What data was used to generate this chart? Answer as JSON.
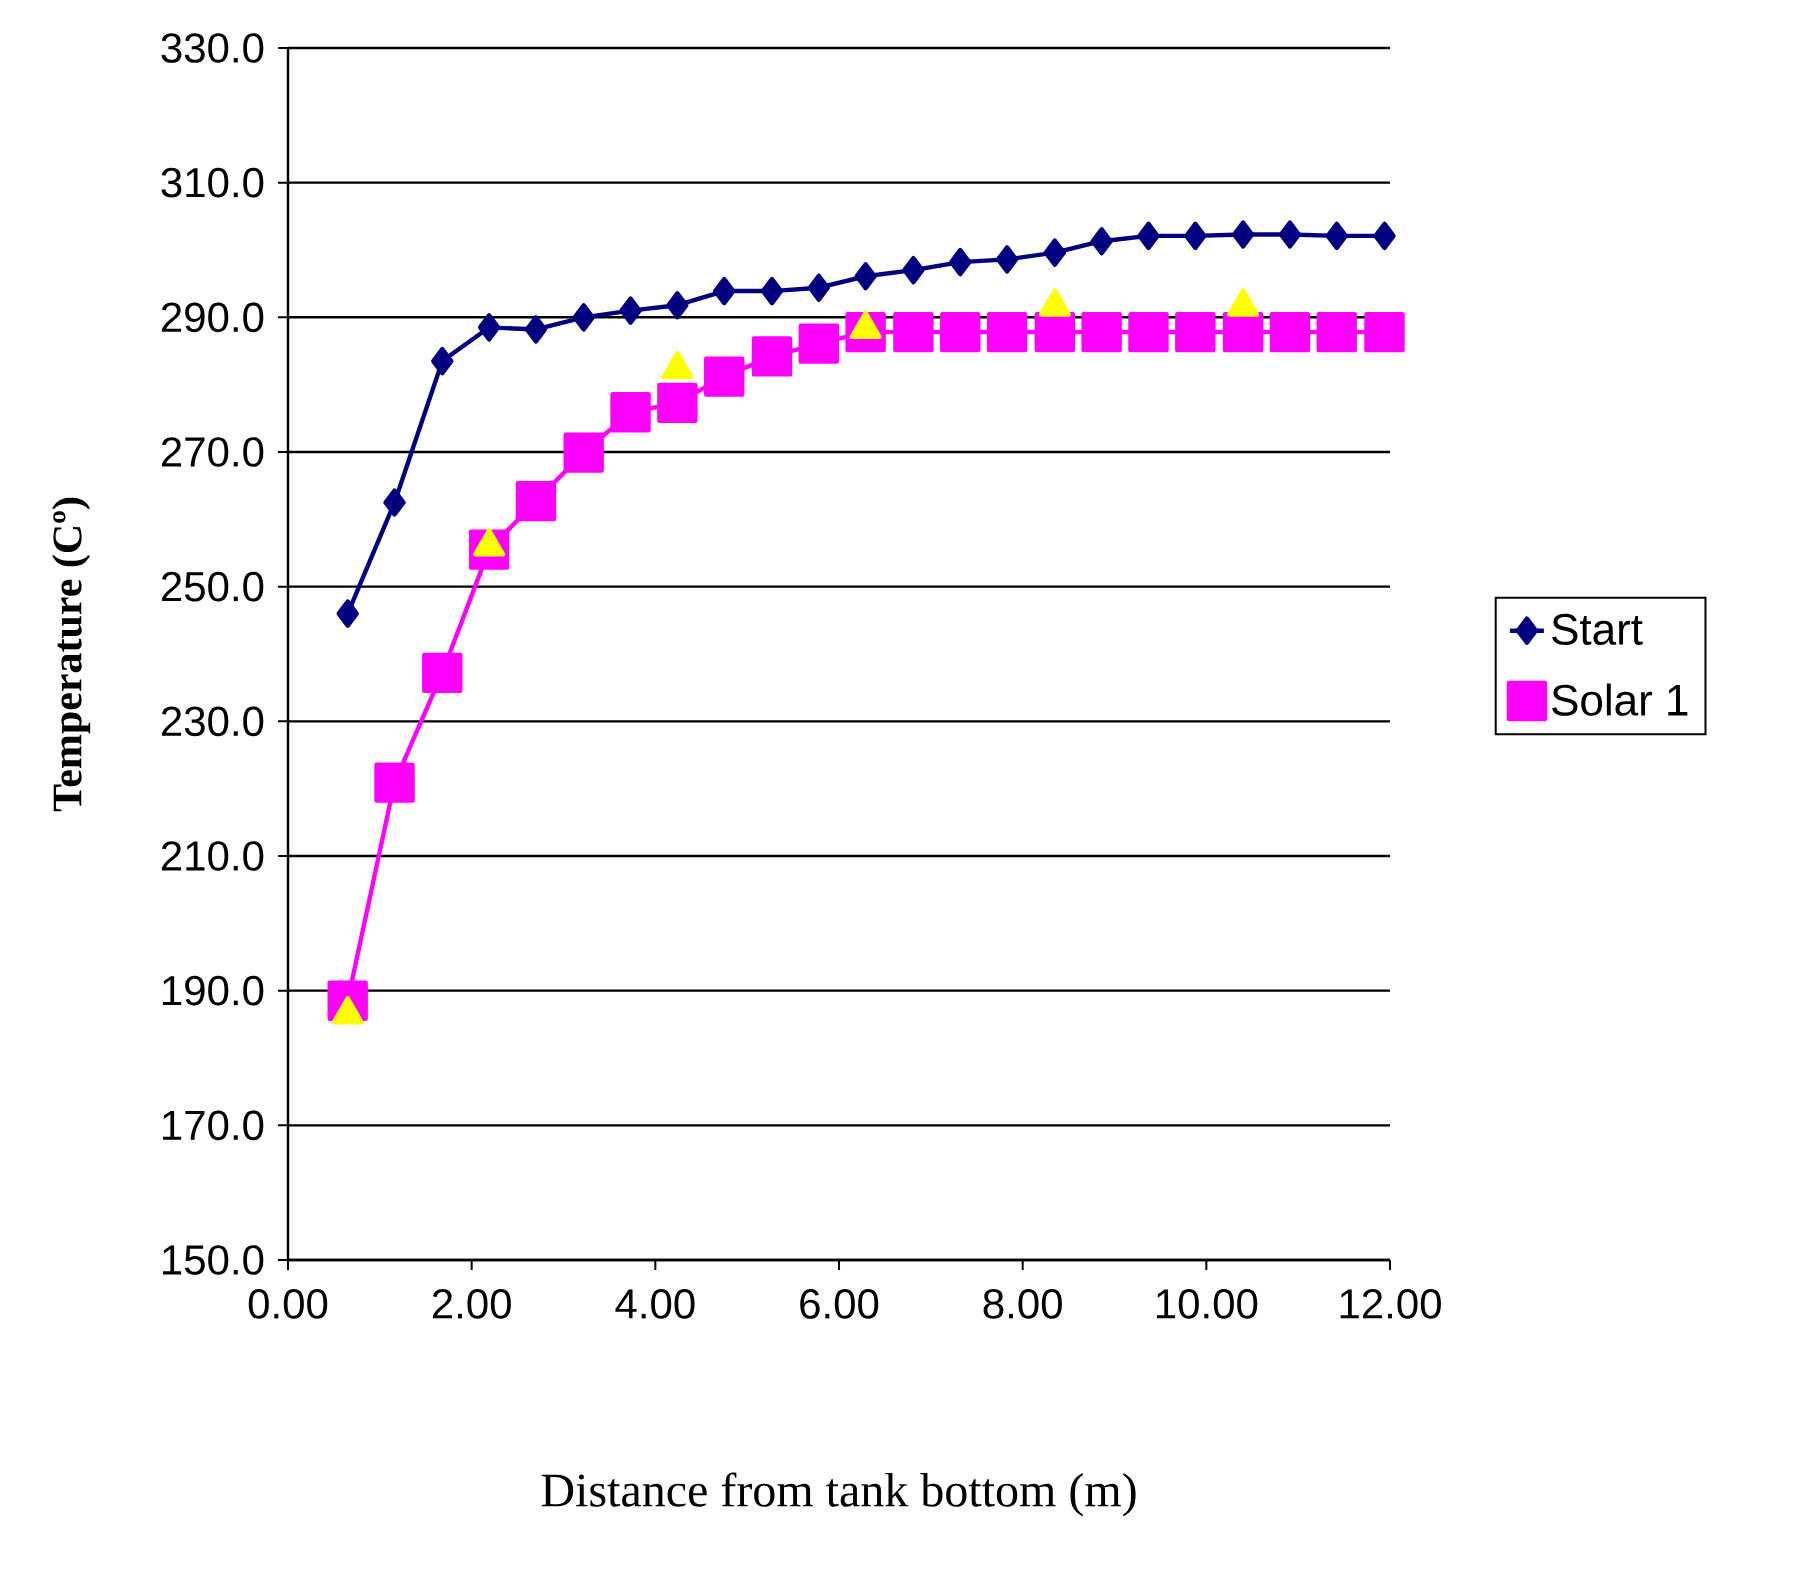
{
  "chart_data": {
    "type": "line",
    "xlabel": "Distance from tank bottom (m)",
    "ylabel": "Temperature (Cº)",
    "x": [
      0.65,
      1.16,
      1.68,
      2.19,
      2.7,
      3.22,
      3.73,
      4.24,
      4.75,
      5.27,
      5.78,
      6.29,
      6.81,
      7.32,
      7.83,
      8.35,
      8.86,
      9.37,
      9.88,
      10.4,
      10.91,
      11.42,
      11.94
    ],
    "series": [
      {
        "name": "Start",
        "color": "#000080",
        "marker": "diamond",
        "values": [
          246,
          262.5,
          283.5,
          288.5,
          288.2,
          290,
          291,
          291.8,
          293.9,
          293.9,
          294.4,
          296.1,
          297,
          298.2,
          298.6,
          299.6,
          301.3,
          302.1,
          302.1,
          302.3,
          302.3,
          302.1,
          302.1
        ]
      },
      {
        "name": "Solar 1",
        "color": "#ff00ff",
        "marker": "square",
        "values": [
          188.5,
          220.9,
          237.2,
          255.5,
          262.7,
          269.9,
          275.9,
          277.3,
          281.2,
          284.2,
          286.1,
          287.8,
          287.8,
          287.8,
          287.8,
          287.8,
          287.8,
          287.8,
          287.8,
          287.8,
          287.8,
          287.8,
          287.8
        ]
      },
      {
        "color": "#ffff00",
        "type": "scatter",
        "marker": "triangle",
        "x": [
          0.65,
          2.19,
          4.24,
          6.29,
          8.35,
          10.4
        ],
        "values": [
          186.5,
          256,
          282.3,
          288.3,
          291.6,
          291.6
        ]
      }
    ],
    "xlim": [
      0,
      12
    ],
    "ylim": [
      150,
      330
    ],
    "xticks": [
      {
        "value": 0,
        "label": "0.00"
      },
      {
        "value": 2,
        "label": "2.00"
      },
      {
        "value": 4,
        "label": "4.00"
      },
      {
        "value": 6,
        "label": "6.00"
      },
      {
        "value": 8,
        "label": "8.00"
      },
      {
        "value": 10,
        "label": "10.00"
      },
      {
        "value": 12,
        "label": "12.00"
      }
    ],
    "yticks": [
      {
        "value": 150,
        "label": "150.0"
      },
      {
        "value": 170,
        "label": "170.0"
      },
      {
        "value": 190,
        "label": "190.0"
      },
      {
        "value": 210,
        "label": "210.0"
      },
      {
        "value": 230,
        "label": "230.0"
      },
      {
        "value": 250,
        "label": "250.0"
      },
      {
        "value": 270,
        "label": "270.0"
      },
      {
        "value": 290,
        "label": "290.0"
      },
      {
        "value": 310,
        "label": "310.0"
      },
      {
        "value": 330,
        "label": "330.0"
      }
    ],
    "grid": "y",
    "legend": "right"
  }
}
